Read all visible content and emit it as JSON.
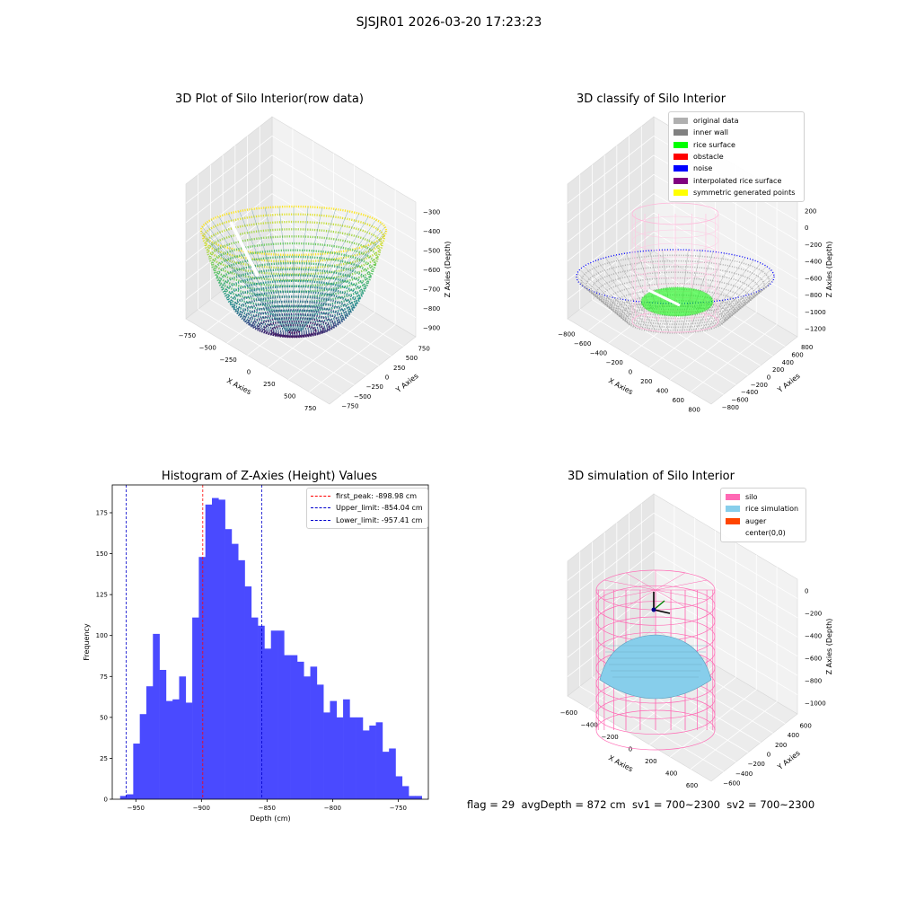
{
  "figure": {
    "suptitle": "SJSJR01 2026-03-20 17:23:23",
    "footer": "flag = 29  avgDepth = 872 cm  sv1 = 700~2300  sv2 = 700~2300"
  },
  "colors": {
    "original": "#b0b0b0",
    "inner_wall": "#808080",
    "rice_surface": "#00ff00",
    "obstacle": "#ff0000",
    "noise": "#0000ff",
    "interp": "#800080",
    "symmetric": "#ffff00",
    "silo": "#ff69b4",
    "rice_sim": "#87ceeb",
    "auger": "#ff4500",
    "hist": "#4a4aff"
  },
  "chart_data": [
    {
      "type": "scatter",
      "title": "3D Plot of Silo Interior(row data)",
      "xlabel": "X Axies",
      "ylabel": "Y Axies",
      "zlabel": "Z Axies (Depth)",
      "x_ticks": [
        "−750",
        "−500",
        "−250",
        "0",
        "250",
        "500",
        "750"
      ],
      "y_ticks": [
        "−750",
        "−500",
        "−250",
        "0",
        "250",
        "500",
        "750"
      ],
      "z_ticks": [
        "−300",
        "−400",
        "−500",
        "−600",
        "−700",
        "−800",
        "−900"
      ],
      "colormap": "viridis"
    },
    {
      "type": "scatter",
      "title": "3D classify of Silo Interior",
      "xlabel": "X Axies",
      "ylabel": "Y Axies",
      "zlabel": "Z Axies (Depth)",
      "x_ticks": [
        "−800",
        "−600",
        "−400",
        "−200",
        "0",
        "200",
        "400",
        "600",
        "800"
      ],
      "y_ticks": [
        "−800",
        "−600",
        "−400",
        "−200",
        "0",
        "200",
        "400",
        "600",
        "800"
      ],
      "z_ticks": [
        "200",
        "0",
        "−200",
        "−400",
        "−600",
        "−800",
        "−1000",
        "−1200"
      ],
      "legend": [
        "original data",
        "inner wall",
        "rice surface",
        "obstacle",
        "noise",
        "interpolated rice surface",
        "symmetric generated points"
      ]
    },
    {
      "type": "bar",
      "title": "Histogram of Z-Axies (Height) Values",
      "xlabel": "Depth (cm)",
      "ylabel": "Frequency",
      "xlim": [
        -968,
        -727
      ],
      "ylim": [
        0,
        192
      ],
      "x_ticks": [
        -950,
        -900,
        -850,
        -800,
        -750
      ],
      "x_tick_labels": [
        "−950",
        "−900",
        "−850",
        "−800",
        "−750"
      ],
      "y_ticks": [
        0,
        25,
        50,
        75,
        100,
        125,
        150,
        175
      ],
      "bin_start": -962,
      "bin_width": 5,
      "values": [
        2,
        3,
        34,
        52,
        69,
        101,
        79,
        60,
        61,
        75,
        59,
        111,
        148,
        180,
        184,
        183,
        165,
        156,
        146,
        130,
        111,
        106,
        92,
        103,
        103,
        88,
        88,
        84,
        75,
        81,
        70,
        53,
        60,
        50,
        61,
        50,
        50,
        42,
        45,
        47,
        29,
        31,
        14,
        8,
        2,
        2
      ],
      "lines": [
        {
          "label": "first_peak: -898.98 cm",
          "x": -898.98,
          "color": "#ff0000"
        },
        {
          "label": "Upper_limit: -854.04 cm",
          "x": -854.04,
          "color": "#0000cc"
        },
        {
          "label": "Lower_limit: -957.41 cm",
          "x": -957.41,
          "color": "#0000cc"
        }
      ]
    },
    {
      "type": "scatter",
      "title": "3D simulation of Silo Interior",
      "xlabel": "X Axies",
      "ylabel": "Y Axies",
      "zlabel": "Z Axies (Depth)",
      "x_ticks": [
        "−600",
        "−400",
        "−200",
        "0",
        "200",
        "400",
        "600"
      ],
      "y_ticks": [
        "−600",
        "−400",
        "−200",
        "0",
        "200",
        "400",
        "600"
      ],
      "z_ticks": [
        "0",
        "−200",
        "−400",
        "−600",
        "−800",
        "−1000"
      ],
      "legend": [
        "silo",
        "rice simulation",
        "auger",
        "center(0,0)"
      ]
    }
  ]
}
